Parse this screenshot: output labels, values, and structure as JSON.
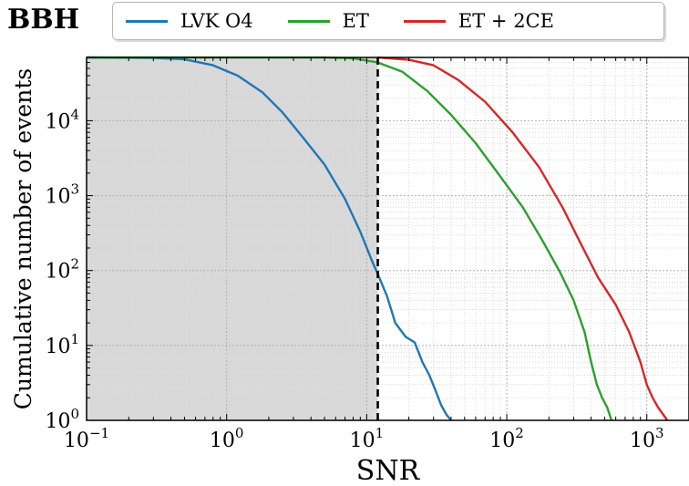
{
  "title": "BBH",
  "colors": {
    "lvk": "#1f77b4",
    "et": "#2ca02c",
    "et2ce": "#d62728",
    "shade": "#d9d9d9",
    "threshold": "#000000"
  },
  "chart_data": {
    "type": "line",
    "xlabel": "SNR",
    "ylabel": "Cumulative number of events",
    "xscale": "log",
    "yscale": "log",
    "xlim": [
      0.1,
      2000
    ],
    "ylim": [
      1,
      70000
    ],
    "grid": true,
    "legend_position": "top",
    "x_ticks": [
      {
        "value": 0.1,
        "base": "10",
        "exp": "−1"
      },
      {
        "value": 1,
        "base": "10",
        "exp": "0"
      },
      {
        "value": 10,
        "base": "10",
        "exp": "1"
      },
      {
        "value": 100,
        "base": "10",
        "exp": "2"
      },
      {
        "value": 1000,
        "base": "10",
        "exp": "3"
      }
    ],
    "y_ticks": [
      {
        "value": 1,
        "base": "10",
        "exp": "0"
      },
      {
        "value": 10,
        "base": "10",
        "exp": "1"
      },
      {
        "value": 100,
        "base": "10",
        "exp": "2"
      },
      {
        "value": 1000,
        "base": "10",
        "exp": "3"
      },
      {
        "value": 10000,
        "base": "10",
        "exp": "4"
      }
    ],
    "threshold_snr": 12,
    "shaded_region": [
      0.1,
      12
    ],
    "series": [
      {
        "name": "LVK O4",
        "color_key": "lvk",
        "points": [
          [
            0.1,
            70000
          ],
          [
            0.3,
            69000
          ],
          [
            0.5,
            66000
          ],
          [
            0.8,
            55000
          ],
          [
            1.2,
            40000
          ],
          [
            1.8,
            24000
          ],
          [
            2.5,
            13000
          ],
          [
            3.5,
            6000
          ],
          [
            5,
            2600
          ],
          [
            7,
            900
          ],
          [
            9,
            330
          ],
          [
            11,
            130
          ],
          [
            12,
            90
          ],
          [
            14,
            45
          ],
          [
            16,
            20
          ],
          [
            19,
            13
          ],
          [
            22,
            11
          ],
          [
            25,
            6
          ],
          [
            28,
            4
          ],
          [
            31,
            2.5
          ],
          [
            34,
            1.6
          ],
          [
            37,
            1.2
          ],
          [
            40,
            1
          ]
        ]
      },
      {
        "name": "ET",
        "color_key": "et",
        "points": [
          [
            0.1,
            70000
          ],
          [
            5,
            69900
          ],
          [
            8,
            68000
          ],
          [
            12,
            60000
          ],
          [
            18,
            45000
          ],
          [
            27,
            25000
          ],
          [
            40,
            12000
          ],
          [
            60,
            5000
          ],
          [
            90,
            1800
          ],
          [
            130,
            700
          ],
          [
            180,
            250
          ],
          [
            240,
            95
          ],
          [
            300,
            40
          ],
          [
            360,
            15
          ],
          [
            400,
            6
          ],
          [
            440,
            3
          ],
          [
            480,
            2
          ],
          [
            520,
            1.5
          ],
          [
            560,
            1
          ]
        ]
      },
      {
        "name": "ET + 2CE",
        "color_key": "et2ce",
        "points": [
          [
            12,
            70000
          ],
          [
            20,
            65000
          ],
          [
            30,
            55000
          ],
          [
            45,
            35000
          ],
          [
            70,
            18000
          ],
          [
            110,
            7000
          ],
          [
            170,
            2400
          ],
          [
            250,
            700
          ],
          [
            350,
            200
          ],
          [
            450,
            80
          ],
          [
            600,
            35
          ],
          [
            750,
            15
          ],
          [
            900,
            6
          ],
          [
            1000,
            3
          ],
          [
            1100,
            2
          ],
          [
            1200,
            1.5
          ],
          [
            1400,
            1
          ]
        ]
      }
    ]
  }
}
